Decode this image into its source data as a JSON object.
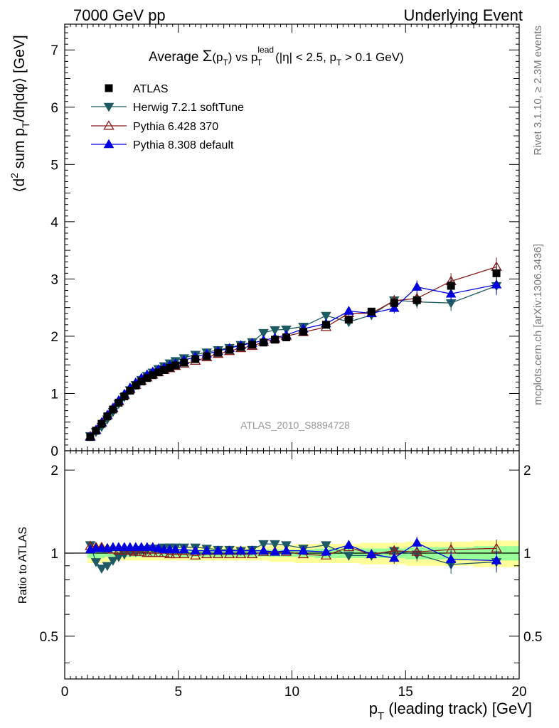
{
  "header": {
    "left": "7000 GeV pp",
    "right": "Underlying Event"
  },
  "side_labels": {
    "rivet": "Rivet 3.1.10, ≥ 2.3M events",
    "mcplots": "mcplots.cern.ch [arXiv:1306.3436]"
  },
  "chart_data": [
    {
      "type": "scatter",
      "title": {
        "prefix": "Average ",
        "sigma": "Σ",
        "paren_open": "(p",
        "sub_T": "T",
        "paren_close": ")",
        "vs": " vs p",
        "sup": "lead",
        "sub": "T",
        "suffix": " (|η| < 2.5, p",
        "suffix_sub": "T",
        "suffix_end": " > 0.1 GeV)"
      },
      "analysis_id": "ATLAS_2010_S8894728",
      "ylabel": {
        "a": "⟨d",
        "sup": "2",
        "b": " sum p",
        "sub": "T",
        "c": "/dηdφ⟩ [GeV]"
      },
      "xlim": [
        0,
        20
      ],
      "ylim": [
        0,
        7.45
      ],
      "yticks": [
        "0",
        "1",
        "2",
        "3",
        "4",
        "5",
        "6",
        "7"
      ],
      "legend_position": "top-left",
      "x": [
        1.125,
        1.375,
        1.625,
        1.875,
        2.125,
        2.375,
        2.625,
        2.875,
        3.125,
        3.375,
        3.625,
        3.875,
        4.125,
        4.375,
        4.625,
        4.875,
        5.25,
        5.75,
        6.25,
        6.75,
        7.25,
        7.75,
        8.25,
        8.75,
        9.25,
        9.75,
        10.5,
        11.5,
        12.5,
        13.5,
        14.5,
        15.5,
        17.0,
        19.0
      ],
      "series": [
        {
          "name": "ATLAS",
          "color": "#000000",
          "marker": "square",
          "values": [
            0.24,
            0.35,
            0.47,
            0.6,
            0.72,
            0.84,
            0.95,
            1.05,
            1.14,
            1.21,
            1.27,
            1.32,
            1.37,
            1.41,
            1.45,
            1.49,
            1.54,
            1.6,
            1.65,
            1.71,
            1.76,
            1.81,
            1.85,
            1.89,
            1.94,
            1.98,
            2.08,
            2.2,
            2.29,
            2.43,
            2.58,
            2.63,
            2.88,
            3.1
          ]
        },
        {
          "name": "Herwig 7.2.1 softTune",
          "color": "#1e5a64",
          "marker": "triangle-down",
          "values": [
            0.26,
            0.33,
            0.42,
            0.55,
            0.68,
            0.82,
            0.94,
            1.06,
            1.15,
            1.24,
            1.31,
            1.37,
            1.43,
            1.48,
            1.53,
            1.57,
            1.62,
            1.68,
            1.72,
            1.76,
            1.8,
            1.85,
            1.9,
            2.06,
            2.11,
            2.12,
            2.17,
            2.36,
            2.25,
            2.37,
            2.63,
            2.6,
            2.58,
            2.88
          ]
        },
        {
          "name": "Pythia 6.428 370",
          "color": "#8b1a1a",
          "marker": "triangle-up-open",
          "values": [
            0.25,
            0.36,
            0.49,
            0.62,
            0.74,
            0.86,
            0.97,
            1.07,
            1.15,
            1.22,
            1.28,
            1.33,
            1.37,
            1.41,
            1.44,
            1.48,
            1.52,
            1.57,
            1.63,
            1.69,
            1.74,
            1.79,
            1.83,
            1.9,
            1.95,
            2.0,
            2.07,
            2.16,
            2.4,
            2.4,
            2.62,
            2.66,
            2.96,
            3.21
          ]
        },
        {
          "name": "Pythia 8.308 default",
          "color": "#0000e0",
          "marker": "triangle-up",
          "values": [
            0.24,
            0.36,
            0.49,
            0.62,
            0.75,
            0.88,
            0.99,
            1.1,
            1.19,
            1.27,
            1.33,
            1.38,
            1.42,
            1.45,
            1.49,
            1.52,
            1.58,
            1.64,
            1.69,
            1.74,
            1.79,
            1.84,
            1.88,
            1.93,
            1.97,
            2.02,
            2.13,
            2.22,
            2.44,
            2.4,
            2.49,
            2.86,
            2.74,
            2.9
          ]
        }
      ]
    },
    {
      "type": "scatter",
      "ylabel": "Ratio to ATLAS",
      "xlabel": {
        "a": "p",
        "sub": "T",
        "b": " (leading track) [GeV]"
      },
      "xlim": [
        0,
        20
      ],
      "ylim": [
        0.35,
        2.35
      ],
      "yticks": [
        "0.5",
        "1",
        "2"
      ],
      "xticks": [
        "0",
        "5",
        "10",
        "15",
        "20"
      ],
      "reference_line": 1,
      "band_outer_color": "#ffff99",
      "band_inner_color": "#99ff99",
      "band_outer": [
        0.08,
        0.08,
        0.08,
        0.07,
        0.07,
        0.06,
        0.06,
        0.06,
        0.06,
        0.06,
        0.06,
        0.06,
        0.06,
        0.06,
        0.06,
        0.06,
        0.06,
        0.06,
        0.06,
        0.06,
        0.06,
        0.06,
        0.06,
        0.06,
        0.07,
        0.07,
        0.08,
        0.08,
        0.08,
        0.09,
        0.09,
        0.1,
        0.1,
        0.11
      ],
      "band_inner": [
        0.04,
        0.04,
        0.04,
        0.03,
        0.03,
        0.03,
        0.03,
        0.03,
        0.03,
        0.03,
        0.03,
        0.03,
        0.03,
        0.03,
        0.03,
        0.03,
        0.03,
        0.03,
        0.03,
        0.03,
        0.03,
        0.03,
        0.03,
        0.03,
        0.03,
        0.03,
        0.03,
        0.04,
        0.04,
        0.04,
        0.04,
        0.05,
        0.05,
        0.06
      ],
      "series": [
        {
          "name": "Herwig 7.2.1 softTune",
          "values": [
            1.07,
            0.93,
            0.88,
            0.9,
            0.94,
            0.97,
            0.99,
            1.01,
            1.01,
            1.03,
            1.03,
            1.04,
            1.04,
            1.05,
            1.05,
            1.05,
            1.05,
            1.05,
            1.04,
            1.03,
            1.03,
            1.02,
            1.03,
            1.08,
            1.08,
            1.07,
            1.04,
            1.07,
            0.98,
            0.98,
            1.02,
            0.99,
            0.91,
            0.93
          ]
        },
        {
          "name": "Pythia 6.428 370",
          "values": [
            1.06,
            1.05,
            1.05,
            1.04,
            1.03,
            1.02,
            1.02,
            1.02,
            1.01,
            1.01,
            1.0,
            1.0,
            1.0,
            1.0,
            0.99,
            0.99,
            0.99,
            0.98,
            0.99,
            0.99,
            0.99,
            0.99,
            0.99,
            1.01,
            1.01,
            1.01,
            0.99,
            0.98,
            1.05,
            0.99,
            1.02,
            1.01,
            1.03,
            1.04
          ]
        },
        {
          "name": "Pythia 8.308 default",
          "values": [
            1.03,
            1.04,
            1.04,
            1.04,
            1.05,
            1.05,
            1.05,
            1.05,
            1.05,
            1.05,
            1.05,
            1.05,
            1.04,
            1.03,
            1.03,
            1.03,
            1.03,
            1.02,
            1.02,
            1.02,
            1.02,
            1.02,
            1.02,
            1.02,
            1.01,
            1.02,
            1.02,
            1.01,
            1.07,
            0.99,
            0.96,
            1.09,
            0.95,
            0.94
          ]
        }
      ]
    }
  ]
}
